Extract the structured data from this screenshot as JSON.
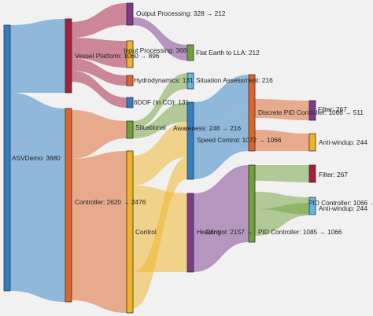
{
  "colors": {
    "background": "#f1f1f1",
    "blue": "#2f7fc6",
    "crimson": "#a61e3e",
    "purple": "#7b3a8b",
    "orange": "#e0632a",
    "olive": "#6fa13b",
    "gold": "#f0b323",
    "lightblue": "#60b8e8"
  },
  "nodes": [
    {
      "id": "asvdemo",
      "label": "ASVDemo: 3680",
      "color": "blue"
    },
    {
      "id": "vessel",
      "label": "Vessel  Platform:  1060  →  896",
      "color": "crimson"
    },
    {
      "id": "controller",
      "label": "Controller:  2620  →  2476",
      "color": "orange"
    },
    {
      "id": "output",
      "label": "Output  Processing:  328  →  212",
      "color": "purple"
    },
    {
      "id": "input",
      "label": "Input Processing: 368",
      "color": "gold"
    },
    {
      "id": "hydro",
      "label": "Hydrodynamics: 131",
      "color": "orange"
    },
    {
      "id": "sixdof",
      "label": "6DOF (In CO): 131",
      "color": "blue"
    },
    {
      "id": "situational",
      "label": "Situational",
      "color": "olive"
    },
    {
      "id": "control",
      "label": "Control",
      "color": "gold"
    },
    {
      "id": "flatearth",
      "label": "Flat Earth to LLA: 212",
      "color": "olive"
    },
    {
      "id": "sitassess",
      "label": "Situation Assessment: 216",
      "color": "lightblue"
    },
    {
      "id": "awareness",
      "label": "Awareness: 248  →  216",
      "color": "blue"
    },
    {
      "id": "speedctl",
      "label": "Speed  Control:  1072  →  1066",
      "color": "blue"
    },
    {
      "id": "heading",
      "label": "Heading",
      "color": "purple"
    },
    {
      "id": "headingctl",
      "label": "Control: 2157  →",
      "color": "purple"
    },
    {
      "id": "discrete",
      "label": "Discrete  PID  Controller:  1066  →  511",
      "color": "orange"
    },
    {
      "id": "pid",
      "label": "PID  Controller:  1085  →  1066",
      "color": "olive"
    },
    {
      "id": "filter1",
      "label": "Filter: 267",
      "color": "purple"
    },
    {
      "id": "antiwindup1",
      "label": "Anti-windup: 244",
      "color": "gold"
    },
    {
      "id": "filter2",
      "label": "Filter: 267",
      "color": "crimson"
    },
    {
      "id": "pid2",
      "label": "PID  Controller:  1066  →  511",
      "color": "lightblue"
    },
    {
      "id": "antiwindup2",
      "label": "Anti-windup: 244",
      "color": "lightblue"
    }
  ],
  "links": [
    {
      "source": "asvdemo",
      "target": "vessel",
      "color": "blue"
    },
    {
      "source": "asvdemo",
      "target": "controller",
      "color": "blue"
    },
    {
      "source": "vessel",
      "target": "output",
      "color": "crimson"
    },
    {
      "source": "vessel",
      "target": "input",
      "color": "crimson"
    },
    {
      "source": "vessel",
      "target": "hydro",
      "color": "crimson"
    },
    {
      "source": "vessel",
      "target": "sixdof",
      "color": "crimson"
    },
    {
      "source": "controller",
      "target": "situational",
      "color": "orange"
    },
    {
      "source": "controller",
      "target": "control",
      "color": "orange"
    },
    {
      "source": "output",
      "target": "flatearth",
      "color": "purple"
    },
    {
      "source": "situational",
      "target": "sitassess",
      "color": "olive"
    },
    {
      "source": "situational",
      "target": "awareness",
      "color": "olive"
    },
    {
      "source": "control",
      "target": "speedctl",
      "color": "gold"
    },
    {
      "source": "control",
      "target": "heading",
      "color": "gold"
    },
    {
      "source": "control",
      "target": "speedctl",
      "color": "gold"
    },
    {
      "source": "speedctl",
      "target": "discrete",
      "color": "blue"
    },
    {
      "source": "speedctl",
      "target": "discrete",
      "color": "blue"
    },
    {
      "source": "heading",
      "target": "pid",
      "color": "purple"
    },
    {
      "source": "heading",
      "target": "pid",
      "color": "purple"
    },
    {
      "source": "discrete",
      "target": "filter1",
      "color": "orange"
    },
    {
      "source": "discrete",
      "target": "antiwindup1",
      "color": "orange"
    },
    {
      "source": "pid",
      "target": "filter2",
      "color": "olive"
    },
    {
      "source": "pid",
      "target": "pid2",
      "color": "olive"
    },
    {
      "source": "pid",
      "target": "antiwindup2",
      "color": "olive"
    }
  ]
}
